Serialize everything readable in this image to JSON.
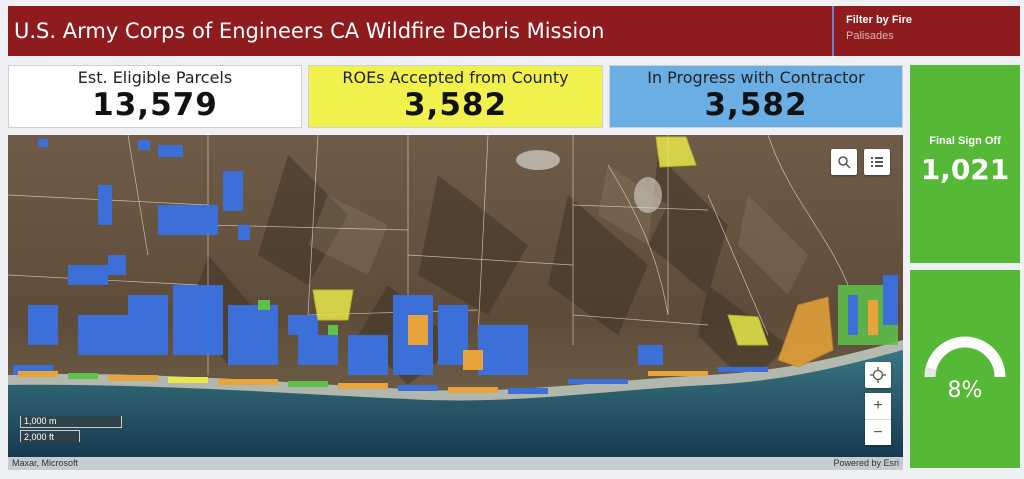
{
  "header": {
    "title": "U.S. Army Corps of Engineers CA Wildfire Debris Mission",
    "filter_label": "Filter by Fire",
    "filter_value": "Palisades"
  },
  "indicators": [
    {
      "label": "Est. Eligible Parcels",
      "value": "13,579",
      "color": "#ffffff"
    },
    {
      "label": "ROEs Accepted from County",
      "value": "3,582",
      "color": "#f1f14d"
    },
    {
      "label": "In Progress with Contractor",
      "value": "3,582",
      "color": "#6aaee4"
    }
  ],
  "signoff": {
    "label": "Final Sign Off",
    "value": "1,021",
    "color": "#55b836"
  },
  "gauge": {
    "percent": 8,
    "text": "8%"
  },
  "map": {
    "scale_metric": "1,000 m",
    "scale_imperial": "2,000 ft",
    "attribution_left": "Maxar, Microsoft",
    "attribution_right": "Powered by Esri",
    "search_icon": "search-icon",
    "legend_icon": "list-icon",
    "locate_icon": "crosshair-icon",
    "zoom_in": "+",
    "zoom_out": "−",
    "parcel_colors": {
      "eligible": "#3d6fd8",
      "roe": "#e8e84a",
      "progress": "#e8a43a",
      "signoff": "#5ec24a"
    }
  }
}
